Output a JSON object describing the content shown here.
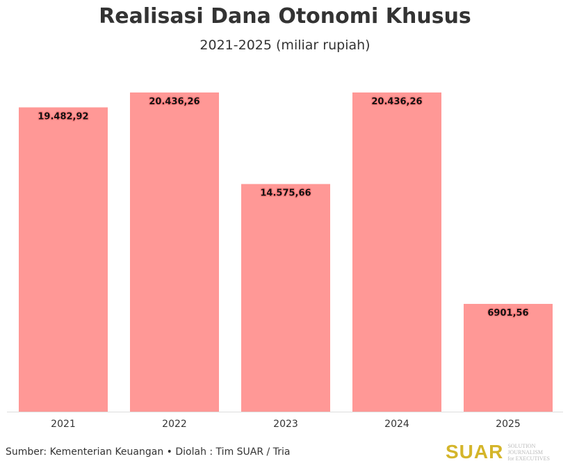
{
  "chart_data": {
    "type": "bar",
    "title": "Realisasi Dana Otonomi Khusus",
    "subtitle": "2021-2025 (miliar rupiah)",
    "categories": [
      "2021",
      "2022",
      "2023",
      "2024",
      "2025"
    ],
    "values": [
      19482.92,
      20436.26,
      14575.66,
      20436.26,
      6901.56
    ],
    "data_labels": [
      "19.482,92",
      "20.436,26",
      "14.575,66",
      "20.436,26",
      "6901,56"
    ],
    "xlabel": "",
    "ylabel": "",
    "ylim": [
      0,
      20436.26
    ],
    "grid": false,
    "bar_color": "#ff9896"
  },
  "footer": {
    "source": "Sumber: Kementerian Keuangan • Diolah : Tim SUAR / Tria",
    "logo": "SUAR",
    "logo_tagline_1": "SOLUTION JOURNALISM",
    "logo_tagline_2": "for EXECUTIVES"
  }
}
